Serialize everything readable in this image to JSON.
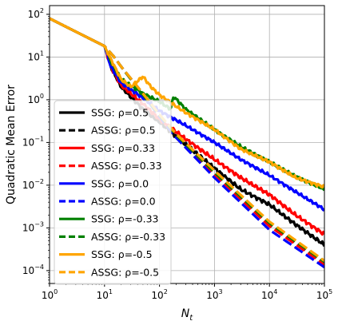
{
  "chart_data": {
    "type": "line",
    "title": "",
    "xlabel": "N",
    "xlabel_subscript": "t",
    "ylabel": "Quadratic Mean Error",
    "xscale": "log",
    "yscale": "log",
    "xlim": [
      1,
      100000
    ],
    "ylim": [
      5e-05,
      160
    ],
    "grid": true,
    "legend_position": "left-center",
    "x_ticks": [
      {
        "value": 1,
        "base": "10",
        "exp": "0"
      },
      {
        "value": 10,
        "base": "10",
        "exp": "1"
      },
      {
        "value": 100,
        "base": "10",
        "exp": "2"
      },
      {
        "value": 1000,
        "base": "10",
        "exp": "3"
      },
      {
        "value": 10000,
        "base": "10",
        "exp": "4"
      },
      {
        "value": 100000,
        "base": "10",
        "exp": "5"
      }
    ],
    "y_ticks": [
      {
        "value": 0.0001,
        "base": "10",
        "exp": "−4"
      },
      {
        "value": 0.001,
        "base": "10",
        "exp": "−3"
      },
      {
        "value": 0.01,
        "base": "10",
        "exp": "−2"
      },
      {
        "value": 0.1,
        "base": "10",
        "exp": "−1"
      },
      {
        "value": 1,
        "base": "10",
        "exp": "0"
      },
      {
        "value": 10,
        "base": "10",
        "exp": "1"
      },
      {
        "value": 100,
        "base": "10",
        "exp": "2"
      }
    ],
    "series": [
      {
        "name": "SSG: ρ=0.5",
        "method": "SSG",
        "rho": "0.5",
        "color": "#000000",
        "dash": false,
        "noise": 0.05,
        "points": [
          [
            1,
            80
          ],
          [
            10,
            18
          ],
          [
            13,
            6
          ],
          [
            20,
            2
          ],
          [
            50,
            0.6
          ],
          [
            100,
            0.3
          ],
          [
            300,
            0.09
          ],
          [
            1000,
            0.025
          ],
          [
            3000,
            0.008
          ],
          [
            10000,
            0.0035
          ],
          [
            30000,
            0.0012
          ],
          [
            100000,
            0.0004
          ]
        ]
      },
      {
        "name": "ASSG: ρ=0.5",
        "method": "ASSG",
        "rho": "0.5",
        "color": "#000000",
        "dash": true,
        "noise": 0,
        "points": [
          [
            1,
            80
          ],
          [
            10,
            18
          ],
          [
            15,
            10
          ],
          [
            20,
            6
          ],
          [
            50,
            1.4
          ],
          [
            100,
            0.45
          ],
          [
            200,
            0.15
          ],
          [
            1000,
            0.02
          ],
          [
            10000,
            0.0012
          ],
          [
            100000,
            0.00015
          ]
        ]
      },
      {
        "name": "SSG: ρ=0.33",
        "method": "SSG",
        "rho": "0.33",
        "color": "#ff0000",
        "dash": false,
        "noise": 0.05,
        "points": [
          [
            1,
            80
          ],
          [
            10,
            18
          ],
          [
            13,
            6
          ],
          [
            20,
            2.2
          ],
          [
            50,
            0.8
          ],
          [
            100,
            0.35
          ],
          [
            300,
            0.12
          ],
          [
            1000,
            0.04
          ],
          [
            3000,
            0.015
          ],
          [
            10000,
            0.006
          ],
          [
            30000,
            0.002
          ],
          [
            100000,
            0.0007
          ]
        ]
      },
      {
        "name": "ASSG: ρ=0.33",
        "method": "ASSG",
        "rho": "0.33",
        "color": "#ff0000",
        "dash": true,
        "noise": 0,
        "points": [
          [
            1,
            80
          ],
          [
            10,
            18
          ],
          [
            15,
            10
          ],
          [
            20,
            6
          ],
          [
            50,
            1.3
          ],
          [
            100,
            0.42
          ],
          [
            200,
            0.14
          ],
          [
            1000,
            0.018
          ],
          [
            10000,
            0.0011
          ],
          [
            100000,
            0.00014
          ]
        ]
      },
      {
        "name": "SSG: ρ=0.0",
        "method": "SSG",
        "rho": "0.0",
        "color": "#0000ff",
        "dash": false,
        "noise": 0.04,
        "points": [
          [
            1,
            80
          ],
          [
            10,
            18
          ],
          [
            13,
            6
          ],
          [
            20,
            2.5
          ],
          [
            50,
            1.1
          ],
          [
            100,
            0.55
          ],
          [
            300,
            0.25
          ],
          [
            1000,
            0.1
          ],
          [
            3000,
            0.04
          ],
          [
            10000,
            0.017
          ],
          [
            30000,
            0.007
          ],
          [
            100000,
            0.0027
          ]
        ]
      },
      {
        "name": "ASSG: ρ=0.0",
        "method": "ASSG",
        "rho": "0.0",
        "color": "#0000ff",
        "dash": true,
        "noise": 0,
        "points": [
          [
            1,
            80
          ],
          [
            10,
            18
          ],
          [
            15,
            10
          ],
          [
            20,
            6
          ],
          [
            50,
            1.3
          ],
          [
            100,
            0.4
          ],
          [
            200,
            0.13
          ],
          [
            1000,
            0.015
          ],
          [
            10000,
            0.0009
          ],
          [
            100000,
            0.00012
          ]
        ]
      },
      {
        "name": "SSG: ρ=-0.33",
        "method": "SSG",
        "rho": "-0.33",
        "color": "#008000",
        "dash": false,
        "noise": 0.04,
        "points": [
          [
            1,
            80
          ],
          [
            10,
            18
          ],
          [
            13,
            8
          ],
          [
            20,
            3
          ],
          [
            50,
            1.4
          ],
          [
            100,
            0.9
          ],
          [
            160,
            0.6
          ],
          [
            180,
            1.2
          ],
          [
            300,
            0.6
          ],
          [
            1000,
            0.2
          ],
          [
            3000,
            0.08
          ],
          [
            10000,
            0.035
          ],
          [
            30000,
            0.016
          ],
          [
            100000,
            0.008
          ]
        ]
      },
      {
        "name": "ASSG: ρ=-0.33",
        "method": "ASSG",
        "rho": "-0.33",
        "color": "#008000",
        "dash": true,
        "noise": 0,
        "points": [
          [
            1,
            80
          ],
          [
            10,
            18
          ],
          [
            15,
            10
          ],
          [
            20,
            6
          ],
          [
            50,
            1.3
          ],
          [
            100,
            0.43
          ],
          [
            200,
            0.15
          ],
          [
            1000,
            0.02
          ],
          [
            10000,
            0.0013
          ],
          [
            100000,
            0.00016
          ]
        ]
      },
      {
        "name": "SSG: ρ=-0.5",
        "method": "SSG",
        "rho": "-0.5",
        "color": "#ffa500",
        "dash": false,
        "noise": 0.04,
        "points": [
          [
            1,
            80
          ],
          [
            10,
            18
          ],
          [
            13,
            9
          ],
          [
            20,
            3
          ],
          [
            30,
            2
          ],
          [
            50,
            3.5
          ],
          [
            70,
            2
          ],
          [
            100,
            1.3
          ],
          [
            150,
            0.9
          ],
          [
            300,
            0.5
          ],
          [
            1000,
            0.2
          ],
          [
            3000,
            0.07
          ],
          [
            10000,
            0.035
          ],
          [
            30000,
            0.015
          ],
          [
            100000,
            0.009
          ]
        ]
      },
      {
        "name": "ASSG: ρ=-0.5",
        "method": "ASSG",
        "rho": "-0.5",
        "color": "#ffa500",
        "dash": true,
        "noise": 0,
        "points": [
          [
            1,
            80
          ],
          [
            10,
            18
          ],
          [
            15,
            10
          ],
          [
            20,
            6
          ],
          [
            50,
            1.4
          ],
          [
            100,
            0.45
          ],
          [
            200,
            0.16
          ],
          [
            1000,
            0.022
          ],
          [
            10000,
            0.0014
          ],
          [
            100000,
            0.00017
          ]
        ]
      }
    ]
  }
}
